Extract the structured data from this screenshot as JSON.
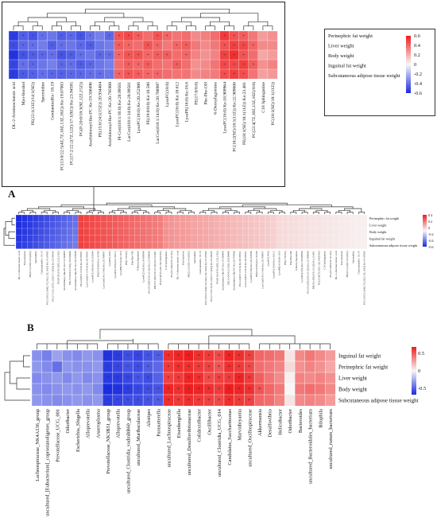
{
  "panel_labels": {
    "a": "A",
    "b": "B"
  },
  "colors": {
    "neg": "#1a2be0",
    "mid": "#f7f7f7",
    "pos": "#ef1d1d",
    "tree": "#333333"
  },
  "chart_data": [
    {
      "type": "heatmap",
      "panel": "A (zoomed detail)",
      "rows": [
        "Perinephric fat weight",
        "Liver weight",
        "Body weight",
        "Inguinal fat weight",
        "Subcutaneous adipose tissue weight"
      ],
      "columns": [
        "DL-2-Aminooctanoic acid",
        "Myo-Inositol",
        "PE(22:1(13Z)/14:1(9Z))",
        "Spermidine",
        "Gentianine|Ke: 18.19",
        "PC(13:0/22:5(4Z,7Z,10Z,13Z,16Z)) Ke:19.07003",
        "PC(17:2/22:2(7Z,12Z)/17:1(9Z)) Ke:23.94585",
        "PG(P-20:0/18:3(9Z,12Z,15Z))",
        "Arachidonoyl-Ike-PC Ke:19.500496",
        "PE(15:0/24:1(15Z)) 20.934404",
        "Arachidonoyl-Ike-PC Ke:20.795908",
        "PI-Cer(d18:1/16:0) Ke:20.99561",
        "LacCer(d18:1/14:0) Ke:20.99561",
        "LysoPC(18:0) Ke:20.252906",
        "PE(19:0/0:0) Ke:18.586",
        "LacCer(d18:1/14:0) Ke:20.788997",
        "LysoPC(18:0)",
        "LysoPC(16:0) Ke:18.612",
        "LysoPE(16:0) Ke:18.6",
        "PE(17:0/0:0)",
        "Phe-Phe-OH",
        "6-Deoxyfagomine",
        "LysoPC(16:0) Ke:18.909964",
        "PC(18:2(9Z)/18:1(11Z)) Ke:22.909606",
        "PE(18:1(9Z)/18:1(11Z)) Ke:23.401",
        "PC(22:4(7Z,10Z,13Z,16Z)/0:0)",
        "C16 Sphinganine",
        "PC(18:1(9Z)/18:1(11Z))"
      ],
      "values": [
        [
          -0.55,
          -0.45,
          -0.48,
          -0.4,
          -0.38,
          -0.45,
          -0.42,
          -0.48,
          -0.4,
          -0.35,
          -0.42,
          0.45,
          0.48,
          0.42,
          0.38,
          0.45,
          0.4,
          0.36,
          0.38,
          0.3,
          0.33,
          0.38,
          0.52,
          0.45,
          0.42,
          0.35,
          0.25,
          0.28
        ],
        [
          -0.5,
          -0.42,
          -0.4,
          -0.36,
          -0.45,
          -0.4,
          -0.38,
          -0.42,
          -0.45,
          -0.38,
          -0.36,
          0.42,
          0.4,
          0.38,
          0.45,
          0.4,
          0.35,
          0.4,
          0.42,
          0.35,
          0.3,
          0.35,
          0.45,
          0.5,
          0.48,
          0.4,
          0.3,
          0.3
        ],
        [
          -0.58,
          -0.48,
          -0.45,
          -0.42,
          -0.4,
          -0.48,
          -0.45,
          -0.4,
          -0.38,
          -0.42,
          -0.4,
          0.4,
          0.45,
          0.45,
          0.4,
          0.42,
          0.42,
          0.38,
          0.4,
          0.32,
          0.28,
          0.32,
          0.5,
          0.55,
          0.45,
          0.38,
          0.22,
          0.25
        ],
        [
          -0.52,
          -0.4,
          -0.42,
          -0.38,
          -0.35,
          -0.42,
          -0.4,
          -0.45,
          -0.42,
          -0.38,
          -0.35,
          0.38,
          0.42,
          0.4,
          0.42,
          0.38,
          0.36,
          0.42,
          0.38,
          0.28,
          0.3,
          0.36,
          0.48,
          0.48,
          0.5,
          0.42,
          0.28,
          0.32
        ],
        [
          -0.55,
          -0.46,
          -0.44,
          -0.4,
          -0.42,
          -0.44,
          -0.42,
          -0.42,
          -0.4,
          -0.4,
          -0.38,
          0.4,
          0.44,
          0.42,
          0.4,
          0.4,
          0.38,
          0.36,
          0.36,
          0.3,
          0.32,
          0.34,
          0.46,
          0.5,
          0.46,
          0.36,
          0.24,
          0.26
        ]
      ],
      "color_scale": {
        "ticks": [
          0.6,
          0.4,
          0.2,
          0,
          -0.2,
          -0.4,
          -0.6
        ]
      }
    },
    {
      "type": "heatmap",
      "panel": "B",
      "rows": [
        "Inguinal fat weight",
        "Perinephric fat weight",
        "Liver weight",
        "Body weight",
        "Subcutaneous adipose tissue weight"
      ],
      "columns": [
        "Lachnospiraceae_NK4A136_group",
        "uncultured_[Eubacterium]_coprostanoligenes_group",
        "Prevotellaceae_UCG_001",
        "Odoribacter",
        "Escherichia_Shigella",
        "Alloprevotella",
        "Anaeroplasma",
        "Prevotellaceae_NK3B31_group",
        "Alloprevotella",
        "uncultured_Clostridia_vadinBB60_group",
        "uncultured_Muribaculaceae",
        "Alistipes",
        "Parasutterella",
        "uncultured_Lachnospiraceae",
        "Eisenbergiella",
        "uncultured_Desulfovibrionaceae",
        "Colidextribacter",
        "Oscillibacter",
        "uncultured_Clostridia_UCG_014",
        "Candidatus_Saccharimonas",
        "Marvinbryantia",
        "uncultured_Oscillospiraceae",
        "Akkermansia",
        "Desulfovibrio",
        "Helicobacter",
        "Odoribacter",
        "Bacteroides",
        "uncultured_Bacteroidales_bacterium",
        "Bilophila",
        "uncultured_rumen_bacterium"
      ],
      "values": [
        [
          -0.3,
          -0.35,
          -0.25,
          -0.3,
          -0.32,
          -0.28,
          -0.3,
          -0.58,
          -0.55,
          -0.5,
          -0.52,
          -0.48,
          -0.45,
          0.55,
          0.58,
          0.6,
          0.55,
          0.52,
          0.48,
          0.58,
          0.55,
          0.5,
          0.4,
          0.38,
          0.35,
          0.05,
          0.3,
          0.35,
          0.3,
          0.25
        ],
        [
          -0.28,
          -0.32,
          -0.4,
          -0.28,
          -0.3,
          -0.3,
          -0.28,
          -0.55,
          -0.52,
          -0.48,
          -0.5,
          -0.45,
          -0.42,
          0.52,
          0.55,
          0.55,
          0.52,
          0.5,
          0.45,
          0.55,
          0.52,
          0.48,
          0.38,
          0.35,
          0.32,
          0.08,
          0.28,
          0.32,
          0.28,
          0.22
        ],
        [
          -0.32,
          -0.3,
          -0.28,
          -0.32,
          -0.28,
          -0.32,
          -0.3,
          -0.56,
          -0.55,
          -0.52,
          -0.48,
          -0.5,
          -0.44,
          0.5,
          0.52,
          0.58,
          0.55,
          0.48,
          0.5,
          0.52,
          0.58,
          0.52,
          0.42,
          0.36,
          0.3,
          0.02,
          0.32,
          0.3,
          0.32,
          0.28
        ],
        [
          -0.3,
          -0.32,
          -0.3,
          -0.28,
          -0.3,
          -0.28,
          -0.32,
          -0.6,
          -0.58,
          -0.55,
          -0.52,
          -0.5,
          -0.48,
          0.58,
          0.55,
          0.6,
          0.58,
          0.55,
          0.52,
          0.6,
          0.58,
          0.55,
          0.45,
          0.4,
          0.35,
          0.0,
          0.35,
          0.38,
          0.35,
          0.3
        ],
        [
          -0.28,
          -0.3,
          -0.32,
          -0.3,
          -0.28,
          -0.3,
          -0.28,
          -0.55,
          -0.52,
          -0.5,
          -0.5,
          -0.48,
          -0.45,
          0.55,
          0.52,
          0.55,
          0.52,
          0.5,
          0.48,
          0.55,
          0.52,
          0.5,
          0.4,
          0.38,
          0.32,
          0.05,
          0.3,
          0.32,
          0.3,
          0.25
        ]
      ],
      "color_scale": {
        "ticks": [
          0.5,
          0,
          -0.5
        ]
      }
    }
  ],
  "overview_a": {
    "rows": [
      "Perinephric fat weight",
      "Liver weight",
      "Body weight",
      "Inguinal fat weight",
      "Subcutaneous adipose tissue weight"
    ],
    "n_columns": 62,
    "color_scale_ticks": [
      0.4,
      0.2,
      0,
      -0.2,
      -0.4,
      -0.6
    ]
  }
}
